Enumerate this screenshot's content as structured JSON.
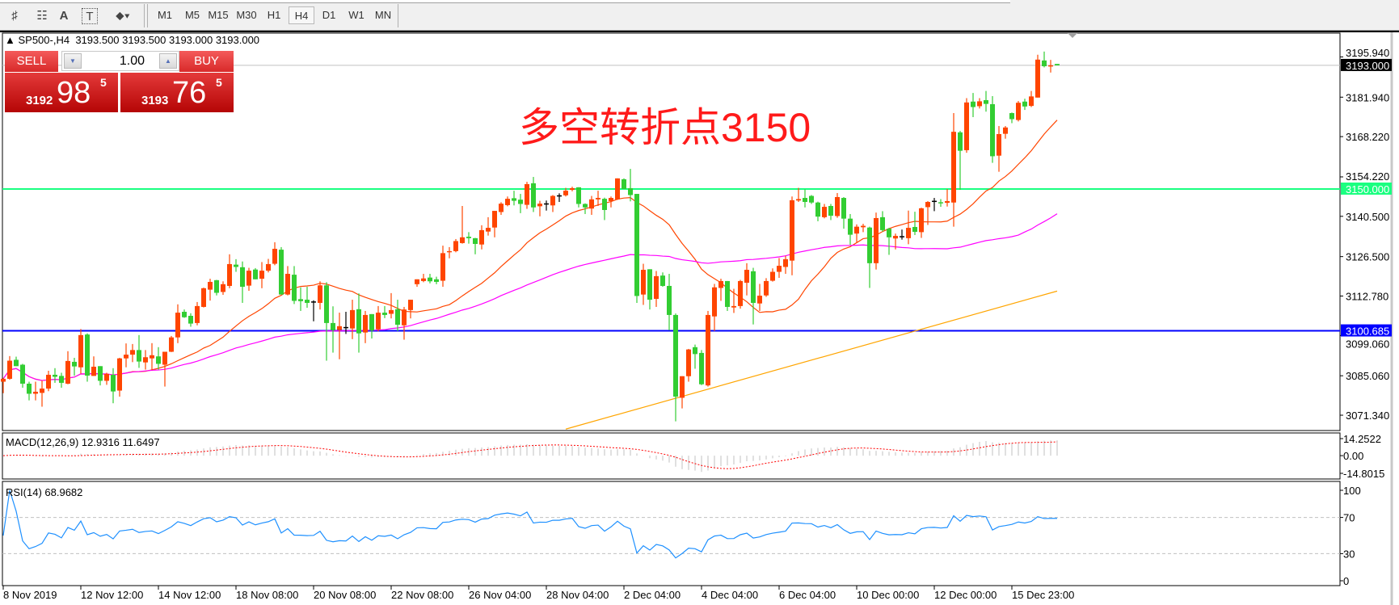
{
  "toolbar": {
    "tools": [
      {
        "icon": "fibonacci-fan-icon",
        "glyph": "♯"
      },
      {
        "icon": "fibonacci-retracement-icon",
        "glyph": "☷"
      },
      {
        "icon": "text-icon",
        "glyph": "A"
      },
      {
        "icon": "text-label-icon",
        "glyph": "T"
      },
      {
        "icon": "arrows-dropdown-icon",
        "glyph": "⬥▾"
      }
    ],
    "timeframes": [
      "M1",
      "M5",
      "M15",
      "M30",
      "H1",
      "H4",
      "D1",
      "W1",
      "MN"
    ],
    "selected_timeframe": "H4"
  },
  "header": {
    "symbol": "SP500-,H4",
    "ohlc": "3193.500 3193.500 3193.000 3193.000"
  },
  "trade_panel": {
    "sell_label": "SELL",
    "buy_label": "BUY",
    "lot": "1.00",
    "sell_price": {
      "prefix": "3192",
      "big": "98",
      "sup": "5"
    },
    "buy_price": {
      "prefix": "3193",
      "big": "76",
      "sup": "5"
    },
    "color": "#d82a2a"
  },
  "annotation": "多空转折点3150",
  "chart_data": {
    "type": "candlestick",
    "symbol": "SP500-",
    "timeframe": "H4",
    "up_color": "#ff4500",
    "down_color": "#32cd32",
    "doji_color": "#000000",
    "y_ticks": [
      "3195.940",
      "3181.940",
      "3168.220",
      "3154.220",
      "3140.500",
      "3126.500",
      "3112.780",
      "3099.060",
      "3085.060",
      "3071.340"
    ],
    "hlines": [
      {
        "price": 3193.0,
        "label": "3193.000",
        "color": "#c0c0c0",
        "tag_bg": "#000000"
      },
      {
        "price": 3150.0,
        "label": "3150.000",
        "color": "#1aff80",
        "tag_bg": "#1aff80"
      },
      {
        "price": 3100.685,
        "label": "3100.685",
        "color": "#0000ff",
        "tag_bg": "#0000ff"
      }
    ],
    "moving_averages": [
      {
        "period": 20,
        "color": "#ff4500"
      },
      {
        "period": 60,
        "color": "#ff00ff"
      },
      {
        "color": "#ffa500",
        "points": [
          [
            87,
            3066.5
          ],
          [
            163,
            3114.5
          ]
        ]
      }
    ],
    "time_labels": [
      {
        "bar": 0,
        "label": "8 Nov 2019"
      },
      {
        "bar": 12,
        "label": "12 Nov 12:00"
      },
      {
        "bar": 24,
        "label": "14 Nov 12:00"
      },
      {
        "bar": 36,
        "label": "18 Nov 08:00"
      },
      {
        "bar": 48,
        "label": "20 Nov 08:00"
      },
      {
        "bar": 60,
        "label": "22 Nov 08:00"
      },
      {
        "bar": 72,
        "label": "26 Nov 04:00"
      },
      {
        "bar": 84,
        "label": "28 Nov 04:00"
      },
      {
        "bar": 96,
        "label": "2 Dec 04:00"
      },
      {
        "bar": 108,
        "label": "4 Dec 04:00"
      },
      {
        "bar": 120,
        "label": "6 Dec 04:00"
      },
      {
        "bar": 132,
        "label": "10 Dec 00:00"
      },
      {
        "bar": 144,
        "label": "12 Dec 00:00"
      },
      {
        "bar": 156,
        "label": "15 Dec 23:00"
      }
    ],
    "macd": {
      "label": "MACD(12,26,9) 12.9316 11.6497",
      "fast": 12,
      "slow": 26,
      "signal": 9,
      "scale_labels": [
        "14.2522",
        "0.00",
        "-14.8015"
      ],
      "range": [
        -14.8015,
        14.2522
      ],
      "histogram_color": "#c0c0c0",
      "signal_color": "#ff0000"
    },
    "rsi": {
      "label": "RSI(14) 68.9682",
      "period": 14,
      "scale_labels": [
        "100",
        "70",
        "30",
        "0"
      ],
      "levels": [
        70,
        30
      ],
      "color": "#1e90ff"
    },
    "candles": [
      [
        3083.0,
        3084.3,
        3079.0,
        3084.0
      ],
      [
        3084.0,
        3091.9,
        3083.7,
        3090.3
      ],
      [
        3090.6,
        3091.7,
        3088.4,
        3088.4
      ],
      [
        3088.9,
        3089.2,
        3080.9,
        3082.3
      ],
      [
        3082.3,
        3083.0,
        3076.5,
        3078.8
      ],
      [
        3078.8,
        3083.0,
        3076.5,
        3079.5
      ],
      [
        3079.1,
        3083.4,
        3074.3,
        3080.6
      ],
      [
        3080.6,
        3086.8,
        3079.7,
        3085.4
      ],
      [
        3085.4,
        3087.7,
        3082.6,
        3084.7
      ],
      [
        3085.0,
        3086.1,
        3080.9,
        3082.6
      ],
      [
        3082.3,
        3093.6,
        3082.1,
        3090.2
      ],
      [
        3089.9,
        3091.3,
        3085.1,
        3088.3
      ],
      [
        3088.0,
        3101.3,
        3085.8,
        3099.2
      ],
      [
        3099.4,
        3099.8,
        3083.0,
        3085.1
      ],
      [
        3085.0,
        3091.8,
        3085.0,
        3088.2
      ],
      [
        3088.4,
        3088.4,
        3081.7,
        3083.3
      ],
      [
        3083.3,
        3086.1,
        3081.9,
        3085.7
      ],
      [
        3085.4,
        3087.7,
        3075.5,
        3079.6
      ],
      [
        3079.9,
        3091.3,
        3077.8,
        3091.1
      ],
      [
        3091.1,
        3096.3,
        3088.0,
        3092.4
      ],
      [
        3092.4,
        3096.1,
        3089.8,
        3094.0
      ],
      [
        3094.0,
        3099.2,
        3087.8,
        3090.0
      ],
      [
        3089.7,
        3094.0,
        3087.2,
        3091.5
      ],
      [
        3091.1,
        3096.4,
        3087.0,
        3092.2
      ],
      [
        3091.8,
        3095.0,
        3087.2,
        3089.2
      ],
      [
        3088.9,
        3093.4,
        3081.3,
        3093.4
      ],
      [
        3093.4,
        3098.9,
        3093.3,
        3098.4
      ],
      [
        3098.4,
        3109.9,
        3096.4,
        3107.0
      ],
      [
        3107.3,
        3108.1,
        3105.2,
        3105.4
      ],
      [
        3105.9,
        3106.8,
        3102.1,
        3103.2
      ],
      [
        3103.4,
        3110.7,
        3102.6,
        3109.3
      ],
      [
        3109.0,
        3115.7,
        3108.8,
        3115.5
      ],
      [
        3115.0,
        3118.8,
        3111.2,
        3117.7
      ],
      [
        3118.3,
        3118.4,
        3113.0,
        3113.9
      ],
      [
        3114.2,
        3117.9,
        3113.2,
        3116.9
      ],
      [
        3116.3,
        3127.3,
        3115.5,
        3123.9
      ],
      [
        3123.7,
        3125.6,
        3121.2,
        3122.9
      ],
      [
        3122.8,
        3124.8,
        3110.4,
        3116.0
      ],
      [
        3116.4,
        3122.6,
        3114.6,
        3121.6
      ],
      [
        3122.0,
        3122.5,
        3118.6,
        3118.6
      ],
      [
        3118.8,
        3124.6,
        3115.5,
        3121.6
      ],
      [
        3121.6,
        3125.7,
        3121.0,
        3123.9
      ],
      [
        3124.0,
        3131.5,
        3123.5,
        3129.2
      ],
      [
        3128.9,
        3129.8,
        3113.3,
        3113.3
      ],
      [
        3113.3,
        3123.2,
        3113.0,
        3120.5
      ],
      [
        3120.2,
        3123.2,
        3110.0,
        3111.1
      ],
      [
        3111.7,
        3115.8,
        3107.6,
        3111.0
      ],
      [
        3111.5,
        3116.0,
        3108.7,
        3110.4
      ],
      [
        3110.7,
        3111.3,
        3104.0,
        3110.7
      ],
      [
        3110.4,
        3117.9,
        3108.1,
        3116.5
      ],
      [
        3116.5,
        3117.6,
        3090.3,
        3103.4
      ],
      [
        3103.4,
        3109.2,
        3093.1,
        3100.9
      ],
      [
        3101.0,
        3107.0,
        3090.8,
        3102.3
      ],
      [
        3101.8,
        3107.3,
        3099.6,
        3101.8
      ],
      [
        3101.5,
        3111.5,
        3097.8,
        3107.9
      ],
      [
        3108.2,
        3113.7,
        3093.1,
        3099.8
      ],
      [
        3100.1,
        3107.6,
        3096.4,
        3106.2
      ],
      [
        3106.5,
        3106.5,
        3098.0,
        3100.8
      ],
      [
        3101.2,
        3109.3,
        3100.5,
        3107.0
      ],
      [
        3107.0,
        3109.3,
        3105.1,
        3106.2
      ],
      [
        3106.6,
        3113.8,
        3105.0,
        3107.9
      ],
      [
        3108.2,
        3111.5,
        3100.6,
        3102.8
      ],
      [
        3102.6,
        3109.0,
        3097.6,
        3108.1
      ],
      [
        3107.9,
        3111.5,
        3105.0,
        3111.5
      ],
      [
        3116.9,
        3118.6,
        3116.0,
        3118.6
      ],
      [
        3118.0,
        3120.5,
        3117.6,
        3118.9
      ],
      [
        3119.2,
        3120.5,
        3117.2,
        3117.9
      ],
      [
        3118.6,
        3119.5,
        3116.9,
        3117.7
      ],
      [
        3118.1,
        3130.3,
        3116.0,
        3127.7
      ],
      [
        3128.0,
        3129.8,
        3125.9,
        3128.4
      ],
      [
        3128.4,
        3132.6,
        3128.0,
        3131.9
      ],
      [
        3131.2,
        3144.1,
        3131.0,
        3133.2
      ],
      [
        3133.4,
        3135.0,
        3131.0,
        3132.9
      ],
      [
        3132.9,
        3133.0,
        3127.3,
        3130.9
      ],
      [
        3130.7,
        3137.4,
        3129.0,
        3135.7
      ],
      [
        3135.2,
        3140.2,
        3133.8,
        3136.5
      ],
      [
        3136.6,
        3142.4,
        3133.2,
        3142.4
      ],
      [
        3142.0,
        3145.4,
        3141.0,
        3144.9
      ],
      [
        3144.4,
        3147.4,
        3144.0,
        3146.6
      ],
      [
        3146.8,
        3149.4,
        3144.3,
        3145.9
      ],
      [
        3146.3,
        3148.3,
        3141.6,
        3144.8
      ],
      [
        3144.5,
        3152.5,
        3143.1,
        3151.7
      ],
      [
        3152.0,
        3154.2,
        3142.0,
        3143.6
      ],
      [
        3144.0,
        3145.9,
        3140.5,
        3144.9
      ],
      [
        3144.8,
        3146.0,
        3142.5,
        3144.8
      ],
      [
        3144.3,
        3147.9,
        3142.0,
        3147.6
      ],
      [
        3147.6,
        3148.5,
        3145.5,
        3147.6
      ],
      [
        3147.8,
        3150.4,
        3147.4,
        3149.4
      ],
      [
        3149.7,
        3150.8,
        3149.2,
        3150.3
      ],
      [
        3150.6,
        3150.6,
        3143.6,
        3144.8
      ],
      [
        3144.8,
        3145.0,
        3141.3,
        3143.6
      ],
      [
        3143.2,
        3147.6,
        3141.0,
        3146.4
      ],
      [
        3146.4,
        3149.4,
        3144.1,
        3146.9
      ],
      [
        3146.6,
        3147.0,
        3139.2,
        3142.7
      ],
      [
        3145.8,
        3147.4,
        3143.6,
        3146.9
      ],
      [
        3146.4,
        3153.7,
        3146.2,
        3153.7
      ],
      [
        3153.4,
        3153.7,
        3150.0,
        3150.0
      ],
      [
        3150.3,
        3157.0,
        3145.7,
        3147.9
      ],
      [
        3148.3,
        3148.3,
        3110.4,
        3112.8
      ],
      [
        3113.3,
        3124.0,
        3109.7,
        3121.9
      ],
      [
        3122.1,
        3122.1,
        3108.1,
        3111.5
      ],
      [
        3111.8,
        3121.5,
        3109.0,
        3119.7
      ],
      [
        3119.9,
        3121.0,
        3116.0,
        3116.3
      ],
      [
        3116.3,
        3120.5,
        3100.9,
        3106.2
      ],
      [
        3106.2,
        3106.7,
        3069.2,
        3077.8
      ],
      [
        3077.4,
        3084.9,
        3073.7,
        3084.9
      ],
      [
        3084.9,
        3094.4,
        3083.0,
        3094.2
      ],
      [
        3095.0,
        3095.9,
        3087.5,
        3092.6
      ],
      [
        3093.0,
        3094.0,
        3081.8,
        3082.1
      ],
      [
        3081.7,
        3107.6,
        3081.3,
        3106.2
      ],
      [
        3105.7,
        3117.0,
        3100.6,
        3115.8
      ],
      [
        3115.6,
        3118.8,
        3111.1,
        3118.0
      ],
      [
        3118.0,
        3118.0,
        3107.6,
        3109.0
      ],
      [
        3108.8,
        3115.3,
        3106.9,
        3109.3
      ],
      [
        3109.3,
        3118.4,
        3108.4,
        3118.0
      ],
      [
        3117.4,
        3124.2,
        3113.0,
        3121.9
      ],
      [
        3121.4,
        3122.6,
        3102.9,
        3110.4
      ],
      [
        3110.2,
        3117.0,
        3107.6,
        3112.9
      ],
      [
        3113.0,
        3119.0,
        3112.5,
        3118.0
      ],
      [
        3118.1,
        3122.4,
        3117.8,
        3121.2
      ],
      [
        3121.2,
        3126.0,
        3119.1,
        3123.3
      ],
      [
        3122.9,
        3126.8,
        3120.5,
        3125.6
      ],
      [
        3125.1,
        3147.4,
        3120.0,
        3146.1
      ],
      [
        3146.0,
        3150.4,
        3145.5,
        3146.5
      ],
      [
        3146.9,
        3149.9,
        3143.6,
        3145.5
      ],
      [
        3147.6,
        3147.9,
        3144.8,
        3145.3
      ],
      [
        3145.3,
        3145.6,
        3138.8,
        3140.4
      ],
      [
        3140.2,
        3144.8,
        3139.8,
        3143.8
      ],
      [
        3144.1,
        3144.8,
        3139.2,
        3140.7
      ],
      [
        3140.6,
        3148.6,
        3140.0,
        3147.2
      ],
      [
        3146.9,
        3147.2,
        3136.2,
        3139.7
      ],
      [
        3139.7,
        3141.3,
        3130.6,
        3134.1
      ],
      [
        3134.5,
        3137.7,
        3131.5,
        3136.9
      ],
      [
        3136.7,
        3137.9,
        3135.0,
        3137.2
      ],
      [
        3136.6,
        3136.9,
        3115.6,
        3124.2
      ],
      [
        3124.2,
        3141.8,
        3122.0,
        3139.9
      ],
      [
        3140.2,
        3142.3,
        3135.2,
        3135.7
      ],
      [
        3136.2,
        3136.5,
        3127.1,
        3133.2
      ],
      [
        3132.8,
        3134.5,
        3129.0,
        3133.7
      ],
      [
        3133.4,
        3135.9,
        3132.4,
        3133.4
      ],
      [
        3132.9,
        3142.5,
        3130.8,
        3136.5
      ],
      [
        3136.8,
        3142.1,
        3134.0,
        3135.1
      ],
      [
        3135.0,
        3143.5,
        3133.0,
        3143.3
      ],
      [
        3143.7,
        3145.8,
        3137.5,
        3145.5
      ],
      [
        3145.7,
        3146.9,
        3142.3,
        3145.7
      ],
      [
        3145.4,
        3146.5,
        3143.8,
        3145.0
      ],
      [
        3145.2,
        3150.0,
        3143.9,
        3145.8
      ],
      [
        3145.3,
        3176.4,
        3136.9,
        3169.9
      ],
      [
        3169.7,
        3170.2,
        3149.7,
        3163.3
      ],
      [
        3163.5,
        3181.6,
        3162.6,
        3180.1
      ],
      [
        3180.4,
        3183.4,
        3175.0,
        3178.5
      ],
      [
        3178.8,
        3181.6,
        3178.0,
        3180.5
      ],
      [
        3180.9,
        3184.1,
        3176.9,
        3179.6
      ],
      [
        3179.5,
        3182.3,
        3159.1,
        3161.4
      ],
      [
        3161.6,
        3171.9,
        3156.0,
        3169.1
      ],
      [
        3169.2,
        3171.9,
        3167.5,
        3171.4
      ],
      [
        3176.4,
        3176.6,
        3172.9,
        3174.3
      ],
      [
        3174.0,
        3180.6,
        3173.5,
        3180.0
      ],
      [
        3180.4,
        3181.4,
        3177.5,
        3178.7
      ],
      [
        3178.9,
        3184.1,
        3178.5,
        3182.2
      ],
      [
        3181.8,
        3196.7,
        3181.8,
        3195.0
      ],
      [
        3194.7,
        3197.8,
        3192.3,
        3192.7
      ],
      [
        3192.6,
        3194.9,
        3190.5,
        3193.0
      ],
      [
        3193.5,
        3193.5,
        3193.0,
        3193.0
      ]
    ]
  }
}
